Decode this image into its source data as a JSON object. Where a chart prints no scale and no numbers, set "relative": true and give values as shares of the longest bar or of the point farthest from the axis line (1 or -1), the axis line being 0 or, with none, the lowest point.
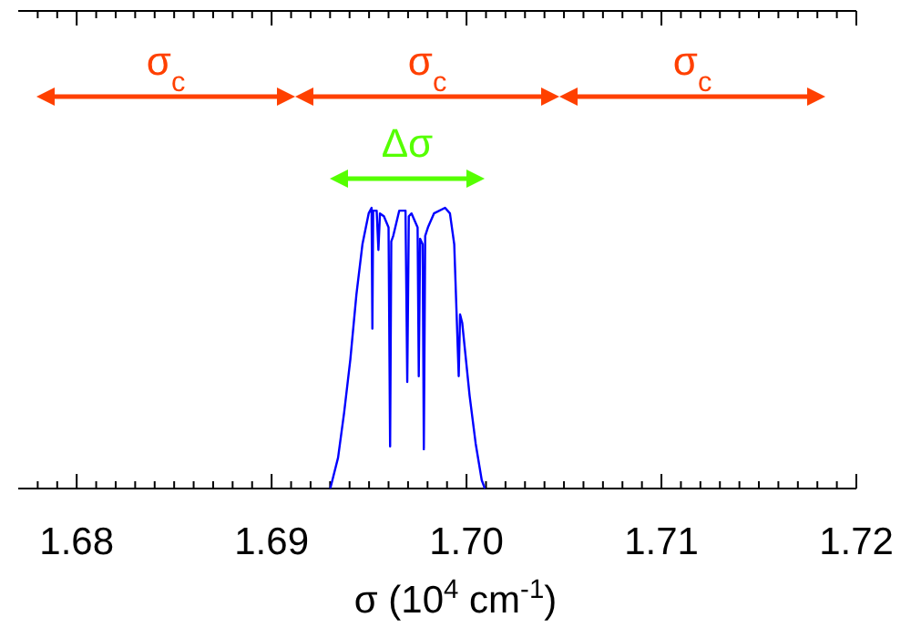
{
  "chart_data": {
    "type": "line",
    "relative": true,
    "xlabel": "σ  (10$^{4}$ cm$^{-1}$)",
    "annotations": [
      "σ$_{c}$",
      "σ$_{c}$",
      "σ$_{c}$",
      "Δσ"
    ],
    "xlim": [
      1.677,
      1.72
    ],
    "xticks": [
      {
        "value": 1.678,
        "label": null
      },
      {
        "value": 1.679,
        "label": null
      },
      1.68,
      {
        "value": 1.681,
        "label": null
      },
      {
        "value": 1.682,
        "label": null
      },
      {
        "value": 1.683,
        "label": null
      },
      {
        "value": 1.684,
        "label": null
      },
      {
        "value": 1.685,
        "label": null
      },
      {
        "value": 1.686,
        "label": null
      },
      {
        "value": 1.687,
        "label": null
      },
      {
        "value": 1.688,
        "label": null
      },
      {
        "value": 1.689,
        "label": null
      },
      1.69,
      {
        "value": 1.691,
        "label": null
      },
      {
        "value": 1.692,
        "label": null
      },
      {
        "value": 1.693,
        "label": null
      },
      {
        "value": 1.694,
        "label": null
      },
      {
        "value": 1.695,
        "label": null
      },
      {
        "value": 1.696,
        "label": null
      },
      {
        "value": 1.697,
        "label": null
      },
      {
        "value": 1.698,
        "label": null
      },
      {
        "value": 1.699,
        "label": null
      },
      {
        "value": 1.7,
        "label": "1.70"
      },
      {
        "value": 1.701,
        "label": null
      },
      {
        "value": 1.702,
        "label": null
      },
      {
        "value": 1.703,
        "label": null
      },
      {
        "value": 1.704,
        "label": null
      },
      {
        "value": 1.705,
        "label": null
      },
      {
        "value": 1.706,
        "label": null
      },
      {
        "value": 1.707,
        "label": null
      },
      {
        "value": 1.708,
        "label": null
      },
      {
        "value": 1.709,
        "label": null
      },
      1.71,
      {
        "value": 1.711,
        "label": null
      },
      {
        "value": 1.712,
        "label": null
      },
      {
        "value": 1.713,
        "label": null
      },
      {
        "value": 1.714,
        "label": null
      },
      {
        "value": 1.715,
        "label": null
      },
      {
        "value": 1.716,
        "label": null
      },
      {
        "value": 1.717,
        "label": null
      },
      {
        "value": 1.718,
        "label": null
      },
      {
        "value": 1.719,
        "label": null
      },
      1.72
    ],
    "series": [
      {
        "color": "#0000ff",
        "x": [
          1.69301,
          1.69341,
          1.69372,
          1.69404,
          1.69435,
          1.69466,
          1.69498,
          1.69513,
          1.69517,
          1.69521,
          1.69539,
          1.69548,
          1.69556,
          1.69576,
          1.696,
          1.69608,
          1.69614,
          1.69624,
          1.69655,
          1.69687,
          1.69696,
          1.69704,
          1.69718,
          1.69749,
          1.69755,
          1.69762,
          1.69775,
          1.69781,
          1.69788,
          1.69802,
          1.69833,
          1.6989,
          1.69915,
          1.69937,
          1.6996,
          1.69967,
          1.69978,
          1.70016,
          1.70047,
          1.70078,
          1.70094
        ],
        "values": [
          0,
          0.11,
          0.27,
          0.46,
          0.69,
          0.87,
          0.98,
          1,
          0.57,
          0.99,
          0.99,
          0.85,
          0.98,
          0.97,
          0.93,
          0.15,
          0.88,
          0.9,
          0.99,
          0.99,
          0.38,
          0.97,
          0.98,
          0.93,
          0.4,
          0.89,
          0.87,
          0.14,
          0.9,
          0.93,
          0.98,
          1,
          0.98,
          0.87,
          0.4,
          0.62,
          0.59,
          0.33,
          0.16,
          0.03,
          0
        ]
      }
    ]
  }
}
